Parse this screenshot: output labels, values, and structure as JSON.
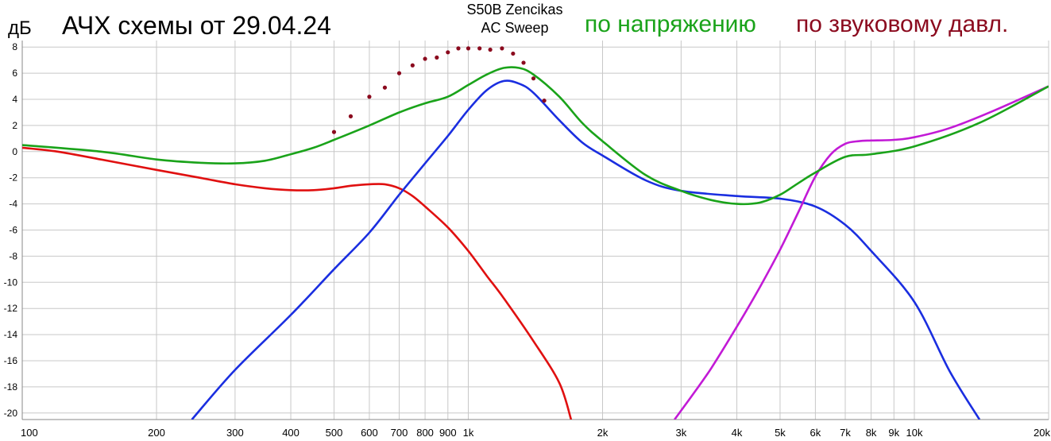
{
  "header": {
    "unit_label": "дБ",
    "title": "АЧХ схемы от 29.04.24",
    "subtitle_line1": "S50B Zencikas",
    "subtitle_line2": "AC Sweep",
    "legend_voltage": "по напряжению",
    "legend_pressure": "по звуковому давл."
  },
  "chart_data": {
    "type": "line",
    "title": "АЧХ схемы от 29.04.24",
    "ylabel": "дБ",
    "xscale": "log",
    "xlim": [
      100,
      20000
    ],
    "ylim": [
      -20.5,
      8.5
    ],
    "grid": true,
    "yticks": [
      8,
      6,
      4,
      2,
      0,
      -2,
      -4,
      -6,
      -8,
      -10,
      -12,
      -14,
      -16,
      -18,
      -20
    ],
    "xticks": [
      {
        "v": 100,
        "label": "100"
      },
      {
        "v": 200,
        "label": "200"
      },
      {
        "v": 300,
        "label": "300"
      },
      {
        "v": 400,
        "label": "400"
      },
      {
        "v": 500,
        "label": "500"
      },
      {
        "v": 600,
        "label": "600"
      },
      {
        "v": 700,
        "label": "700"
      },
      {
        "v": 800,
        "label": "800"
      },
      {
        "v": 900,
        "label": "900"
      },
      {
        "v": 1000,
        "label": "1k"
      },
      {
        "v": 2000,
        "label": "2k"
      },
      {
        "v": 3000,
        "label": "3k"
      },
      {
        "v": 4000,
        "label": "4k"
      },
      {
        "v": 5000,
        "label": "5k"
      },
      {
        "v": 6000,
        "label": "6k"
      },
      {
        "v": 7000,
        "label": "7k"
      },
      {
        "v": 8000,
        "label": "8k"
      },
      {
        "v": 9000,
        "label": "9k"
      },
      {
        "v": 10000,
        "label": "10k"
      },
      {
        "v": 20000,
        "label": "20k"
      }
    ],
    "colors": {
      "voltage": "#1aa31a",
      "pressure": "#8b0a1e",
      "red": "#e01010",
      "blue": "#1a2ee0",
      "magenta": "#c21ad6",
      "grid": "#c8c8c8"
    },
    "series": [
      {
        "key": "red",
        "color": "#e01010",
        "x": [
          100,
          120,
          150,
          200,
          250,
          300,
          350,
          400,
          450,
          500,
          550,
          600,
          650,
          700,
          750,
          800,
          900,
          1000,
          1100,
          1200,
          1400,
          1600,
          1700
        ],
        "y": [
          0.3,
          0.0,
          -0.6,
          -1.4,
          -2.0,
          -2.5,
          -2.8,
          -2.95,
          -2.95,
          -2.8,
          -2.6,
          -2.5,
          -2.5,
          -2.8,
          -3.4,
          -4.2,
          -5.8,
          -7.6,
          -9.5,
          -11.2,
          -14.5,
          -17.7,
          -20.5
        ]
      },
      {
        "key": "blue",
        "color": "#1a2ee0",
        "x": [
          240,
          300,
          400,
          500,
          600,
          700,
          800,
          900,
          1000,
          1100,
          1200,
          1300,
          1400,
          1600,
          1800,
          2000,
          2500,
          3000,
          4000,
          5000,
          6000,
          7000,
          8000,
          10000,
          12000,
          14000
        ],
        "y": [
          -20.5,
          -16.7,
          -12.5,
          -9.0,
          -6.2,
          -3.3,
          -0.9,
          1.2,
          3.2,
          4.7,
          5.4,
          5.2,
          4.5,
          2.4,
          0.7,
          -0.3,
          -2.2,
          -3.0,
          -3.4,
          -3.6,
          -4.2,
          -5.6,
          -7.6,
          -11.5,
          -16.8,
          -20.5
        ]
      },
      {
        "key": "magenta",
        "color": "#c21ad6",
        "x": [
          2900,
          3200,
          3500,
          4000,
          4500,
          5000,
          5500,
          6000,
          6500,
          7000,
          7500,
          8000,
          9000,
          10000,
          12000,
          15000,
          20000
        ],
        "y": [
          -20.5,
          -18.5,
          -16.6,
          -13.4,
          -10.4,
          -7.5,
          -4.6,
          -1.9,
          -0.2,
          0.6,
          0.8,
          0.85,
          0.9,
          1.1,
          1.8,
          3.1,
          5.0
        ]
      },
      {
        "key": "green",
        "color": "#1aa31a",
        "x": [
          100,
          150,
          200,
          250,
          300,
          350,
          400,
          450,
          500,
          600,
          700,
          800,
          900,
          1000,
          1100,
          1200,
          1300,
          1400,
          1600,
          1800,
          2000,
          2500,
          3000,
          3500,
          4000,
          4500,
          5000,
          5500,
          6000,
          7000,
          8000,
          10000,
          14000,
          20000
        ],
        "y": [
          0.5,
          0.0,
          -0.6,
          -0.85,
          -0.9,
          -0.7,
          -0.2,
          0.3,
          0.9,
          2.0,
          3.0,
          3.7,
          4.2,
          5.1,
          5.9,
          6.4,
          6.4,
          5.9,
          4.2,
          2.2,
          0.8,
          -1.8,
          -3.0,
          -3.7,
          -4.0,
          -3.9,
          -3.3,
          -2.4,
          -1.6,
          -0.4,
          -0.2,
          0.4,
          2.2,
          5.0
        ]
      },
      {
        "key": "pressure_dots",
        "color": "#8b0a1e",
        "style": "dots",
        "x": [
          500,
          545,
          600,
          650,
          700,
          750,
          800,
          850,
          900,
          950,
          1000,
          1060,
          1120,
          1190,
          1260,
          1330,
          1400,
          1480
        ],
        "y": [
          1.5,
          2.7,
          4.2,
          4.9,
          6.0,
          6.6,
          7.1,
          7.2,
          7.6,
          7.9,
          7.9,
          7.9,
          7.8,
          7.9,
          7.5,
          6.8,
          5.6,
          3.9
        ]
      }
    ]
  }
}
